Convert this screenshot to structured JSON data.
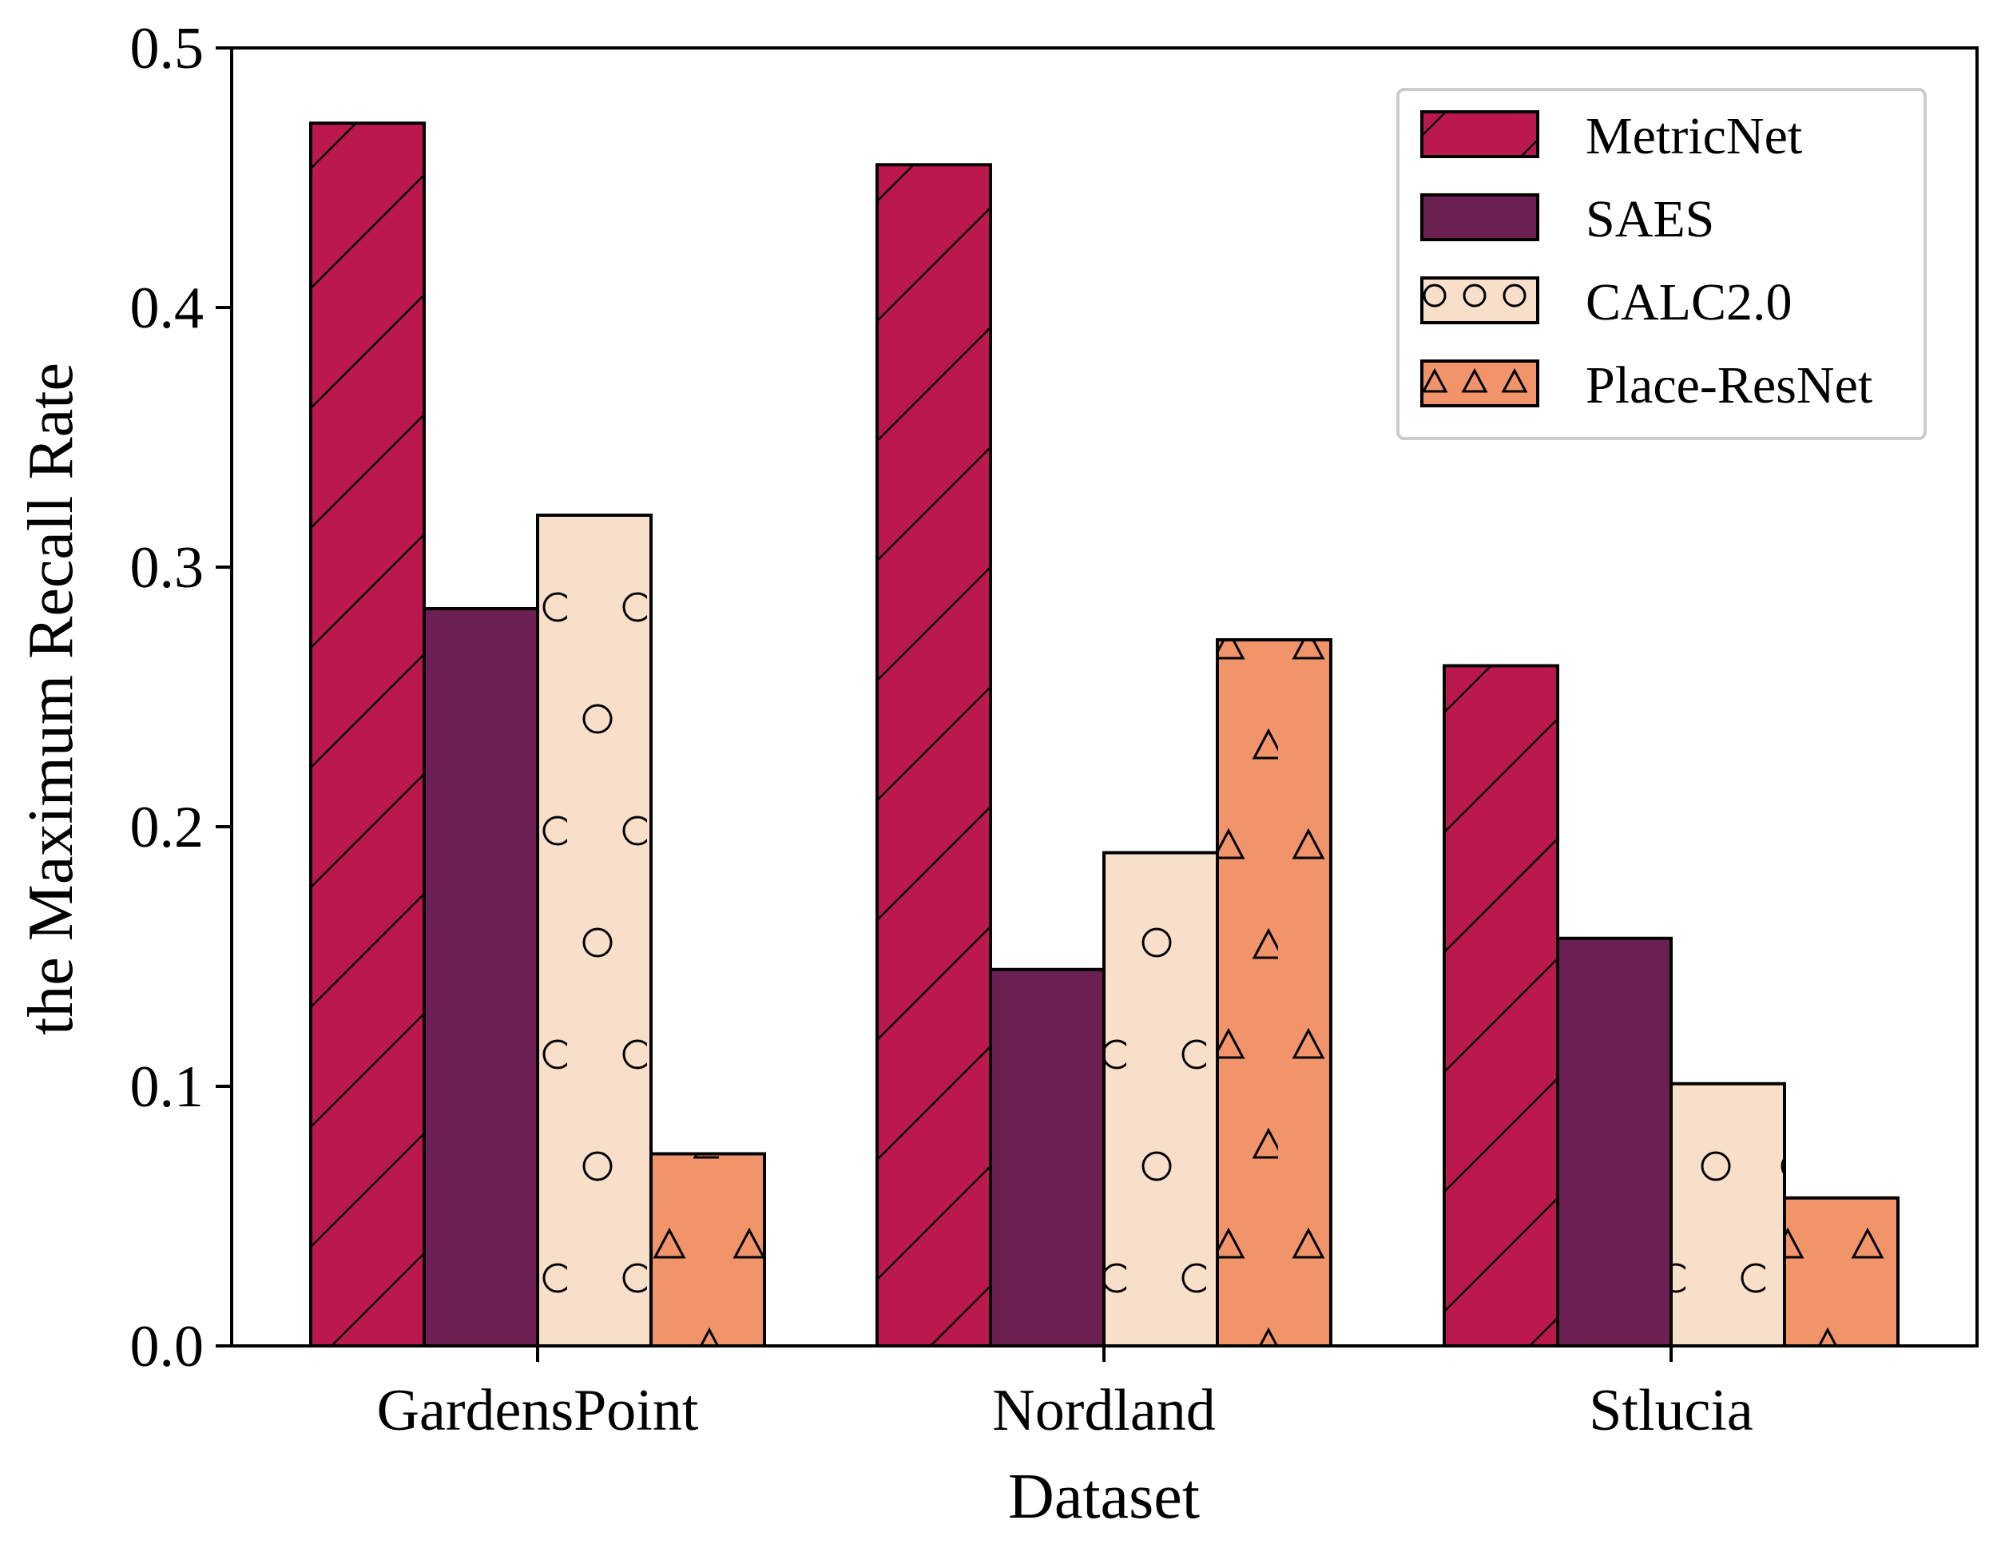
{
  "chart_data": {
    "type": "bar",
    "title": "",
    "xlabel": "Dataset",
    "ylabel": "the Maximum Recall Rate",
    "categories": [
      "GardensPoint",
      "Nordland",
      "Stlucia"
    ],
    "ylim": [
      0.0,
      0.5
    ],
    "yticks": [
      "0.0",
      "0.1",
      "0.2",
      "0.3",
      "0.4",
      "0.5"
    ],
    "grid": false,
    "legend_position": "top-right",
    "series": [
      {
        "name": "MetricNet",
        "values": [
          0.471,
          0.455,
          0.262
        ],
        "color": "#bb1850",
        "pattern": "hatch"
      },
      {
        "name": "SAES",
        "values": [
          0.284,
          0.145,
          0.157
        ],
        "color": "#6b1f53",
        "pattern": "none"
      },
      {
        "name": "CALC2.0",
        "values": [
          0.32,
          0.19,
          0.101
        ],
        "color": "#f8dfc9",
        "pattern": "circle"
      },
      {
        "name": "Place-ResNet",
        "values": [
          0.074,
          0.272,
          0.057
        ],
        "color": "#f2946a",
        "pattern": "triangle"
      }
    ]
  }
}
